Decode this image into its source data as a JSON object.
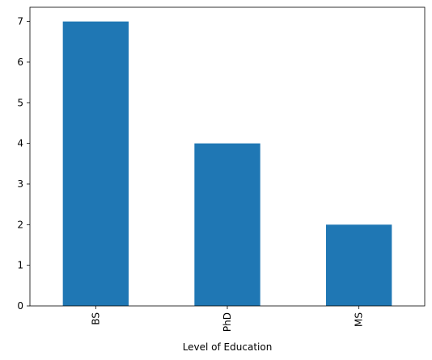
{
  "chart_data": {
    "type": "bar",
    "x_label": "Level of Education",
    "categories": [
      "BS",
      "PhD",
      "MS"
    ],
    "values": [
      7,
      4,
      2
    ],
    "color": "#1f77b4",
    "ylim": [
      0,
      7.35
    ],
    "yticks": [
      0,
      1,
      2,
      3,
      4,
      5,
      6,
      7
    ],
    "grid": false
  }
}
